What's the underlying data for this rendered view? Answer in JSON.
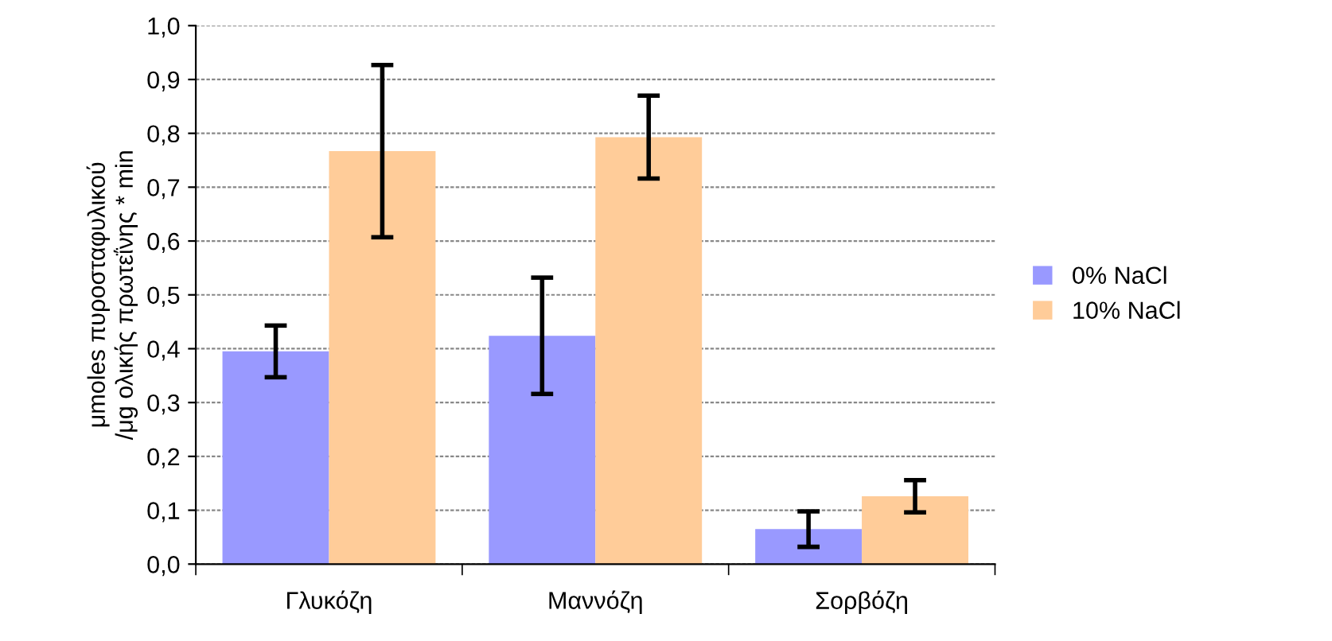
{
  "chart_data": {
    "type": "bar",
    "ylabel": "μmoles πυροσταφυλικού\n/μg ολικής πρωτεΐνης * min",
    "categories": [
      "Γλυκόζη",
      "Μαννόζη",
      "Σορβόζη"
    ],
    "series": [
      {
        "name": "0% NaCl",
        "color": "#9999ff",
        "values": [
          0.395,
          0.424,
          0.065
        ],
        "errors": [
          0.048,
          0.108,
          0.033
        ]
      },
      {
        "name": "10% NaCl",
        "color": "#ffcc99",
        "values": [
          0.767,
          0.793,
          0.126
        ],
        "errors": [
          0.16,
          0.077,
          0.03
        ]
      }
    ],
    "ylim": [
      0,
      1.0
    ],
    "yticks": [
      {
        "value": 0,
        "label": "0,0"
      },
      {
        "value": 0.1,
        "label": "0,1"
      },
      {
        "value": 0.2,
        "label": "0,2"
      },
      {
        "value": 0.3,
        "label": "0,3"
      },
      {
        "value": 0.4,
        "label": "0,4"
      },
      {
        "value": 0.5,
        "label": "0,5"
      },
      {
        "value": 0.6,
        "label": "0,6"
      },
      {
        "value": 0.7,
        "label": "0,7"
      },
      {
        "value": 0.8,
        "label": "0,8"
      },
      {
        "value": 0.9,
        "label": "0,9"
      },
      {
        "value": 1.0,
        "label": "1,0"
      }
    ],
    "grid": "y",
    "legend": "right"
  }
}
